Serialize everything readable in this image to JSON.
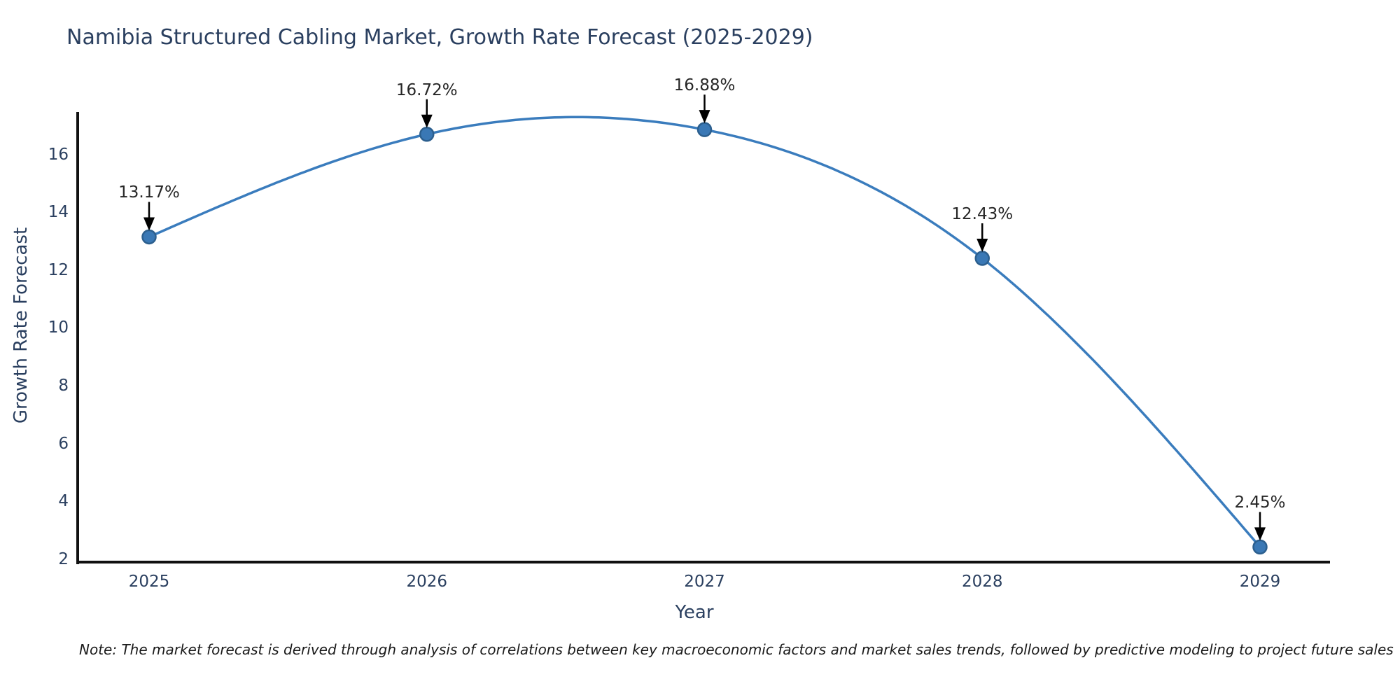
{
  "note": "Note: The market forecast is derived through analysis of correlations between key macroeconomic factors and market sales trends, followed by predictive modeling to project future sales",
  "colors": {
    "line": "#3a7cbd",
    "marker_fill": "#3a78b5",
    "marker_edge": "#2c5f8e",
    "axis": "#111111",
    "arrow": "#000000",
    "label_text": "#2a3f5f",
    "annotation_text": "#262626"
  },
  "chart_data": {
    "type": "line",
    "title": "Namibia Structured Cabling Market, Growth Rate Forecast (2025-2029)",
    "xlabel": "Year",
    "ylabel": "Growth Rate Forecast",
    "x": [
      2025,
      2026,
      2027,
      2028,
      2029
    ],
    "values": [
      13.17,
      16.72,
      16.88,
      12.43,
      2.45
    ],
    "point_labels": [
      "13.17%",
      "16.72%",
      "16.88%",
      "12.43%",
      "2.45%"
    ],
    "x_tick_labels": [
      "2025",
      "2026",
      "2027",
      "2028",
      "2029"
    ],
    "y_ticks": [
      2,
      4,
      6,
      8,
      10,
      12,
      14,
      16
    ],
    "ylim": [
      2,
      17.5
    ],
    "grid": false,
    "legend": "none",
    "smooth": true,
    "annotations_have_arrows": true
  }
}
